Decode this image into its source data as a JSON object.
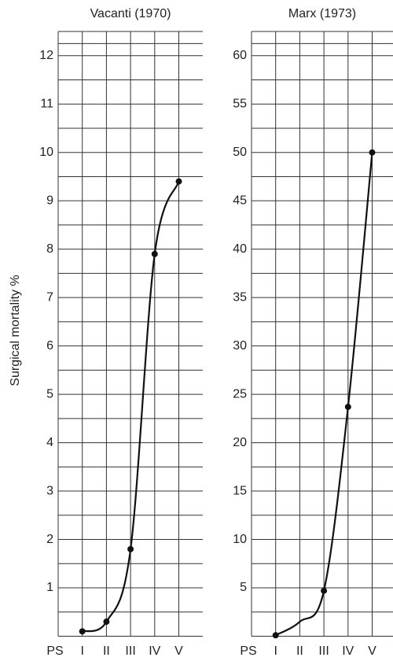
{
  "chart_data": [
    {
      "type": "line",
      "title": "Vacanti (1970)",
      "ylabel": "Surgical mortality %",
      "xlabel": "PS",
      "categories": [
        "I",
        "II",
        "III",
        "IV",
        "V"
      ],
      "series": [
        {
          "name": "Vacanti",
          "color": "#111111",
          "values": [
            0.1,
            0.3,
            1.8,
            7.9,
            9.4
          ],
          "markers": [
            true,
            true,
            true,
            true,
            true
          ]
        }
      ],
      "ylim": [
        0,
        12.5
      ],
      "yticks": [
        1,
        2,
        3,
        4,
        5,
        6,
        7,
        8,
        9,
        10,
        11,
        12
      ],
      "grid": true
    },
    {
      "type": "line",
      "title": "Marx (1973)",
      "xlabel": "PS",
      "categories": [
        "I",
        "II",
        "III",
        "IV",
        "V"
      ],
      "series": [
        {
          "name": "Marx",
          "color": "#111111",
          "values": [
            0.1,
            1.5,
            4.7,
            23.7,
            50
          ],
          "markers": [
            true,
            false,
            true,
            true,
            true
          ]
        }
      ],
      "ylim": [
        0,
        62.5
      ],
      "yticks": [
        5,
        10,
        15,
        20,
        25,
        30,
        35,
        40,
        45,
        50,
        55,
        60
      ],
      "grid": true
    }
  ]
}
